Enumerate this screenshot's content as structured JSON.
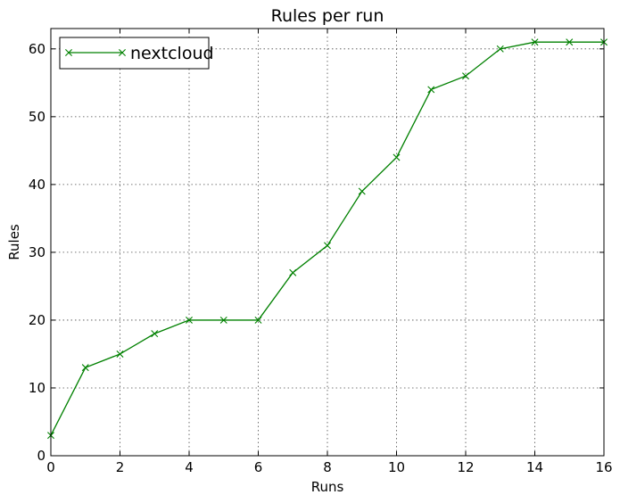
{
  "chart_data": {
    "type": "line",
    "title": "Rules per run",
    "xlabel": "Runs",
    "ylabel": "Rules",
    "xlim": [
      0,
      16
    ],
    "ylim": [
      0,
      63
    ],
    "xticks": [
      0,
      2,
      4,
      6,
      8,
      10,
      12,
      14,
      16
    ],
    "yticks": [
      0,
      10,
      20,
      30,
      40,
      50,
      60
    ],
    "grid": true,
    "legend_position": "top-left",
    "series": [
      {
        "name": "nextcloud",
        "color": "#008000",
        "marker": "x",
        "x": [
          0,
          1,
          2,
          3,
          4,
          5,
          6,
          7,
          8,
          9,
          10,
          11,
          12,
          13,
          14,
          15,
          16
        ],
        "y": [
          3,
          13,
          15,
          18,
          20,
          20,
          20,
          27,
          31,
          39,
          44,
          54,
          56,
          60,
          61,
          61,
          61
        ]
      }
    ]
  }
}
